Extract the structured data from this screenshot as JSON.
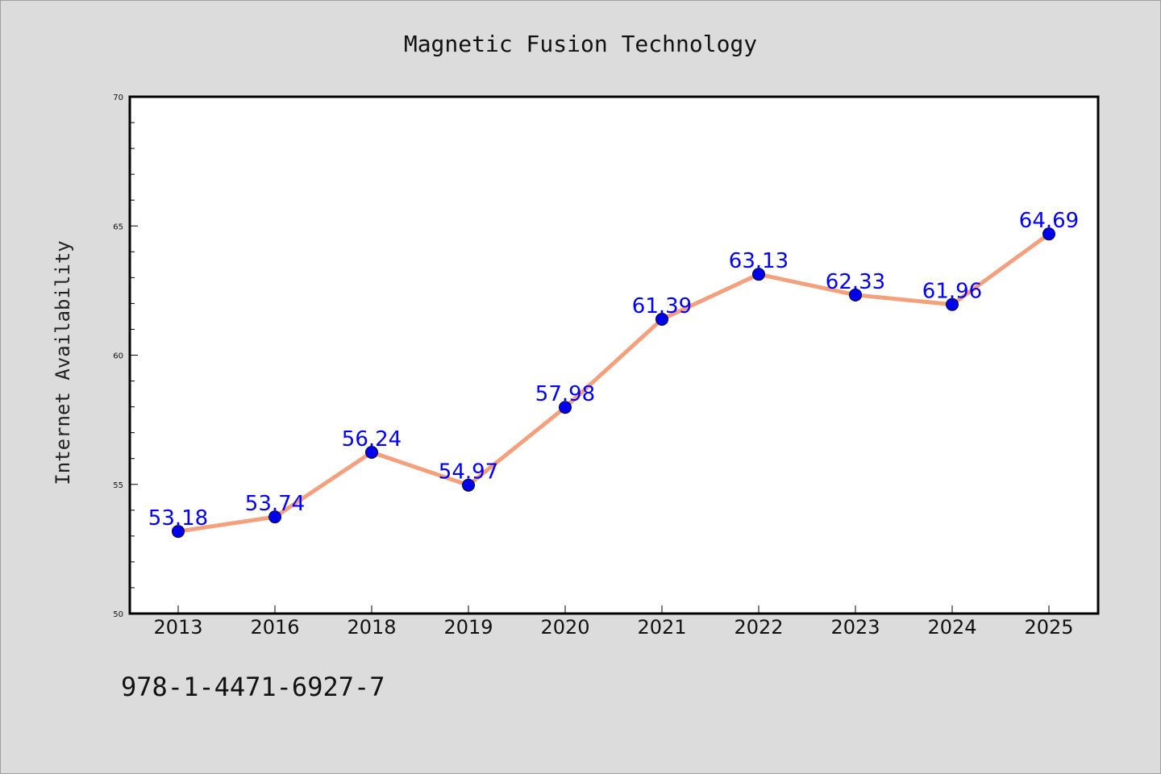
{
  "chart_data": {
    "type": "line",
    "title": "Magnetic Fusion Technology",
    "xlabel": "",
    "ylabel": "Internet Availability",
    "categories": [
      "2013",
      "2016",
      "2018",
      "2019",
      "2020",
      "2021",
      "2022",
      "2023",
      "2024",
      "2025"
    ],
    "series": [
      {
        "values": [
          53.18,
          53.74,
          56.24,
          54.97,
          57.98,
          61.39,
          63.13,
          62.33,
          61.96,
          64.69
        ],
        "labels": [
          "53.18",
          "53.74",
          "56.24",
          "54.97",
          "57.98",
          "61.39",
          "63.13",
          "62.33",
          "61.96",
          "64.69"
        ]
      }
    ],
    "ylim": [
      50,
      70
    ],
    "yticks": [
      50,
      55,
      60,
      65,
      70
    ],
    "ytick_labels": [
      "50",
      "55",
      "60",
      "65",
      "70"
    ],
    "grid": false,
    "legend": "none",
    "colors": {
      "line": "#f4a07c",
      "marker": "#0000ee",
      "marker_edge": "#000033",
      "data_label": "#0000ff",
      "plot_background": "#ffffff",
      "figure_background": "#dcdcdc"
    }
  },
  "footnote": "978-1-4471-6927-7"
}
